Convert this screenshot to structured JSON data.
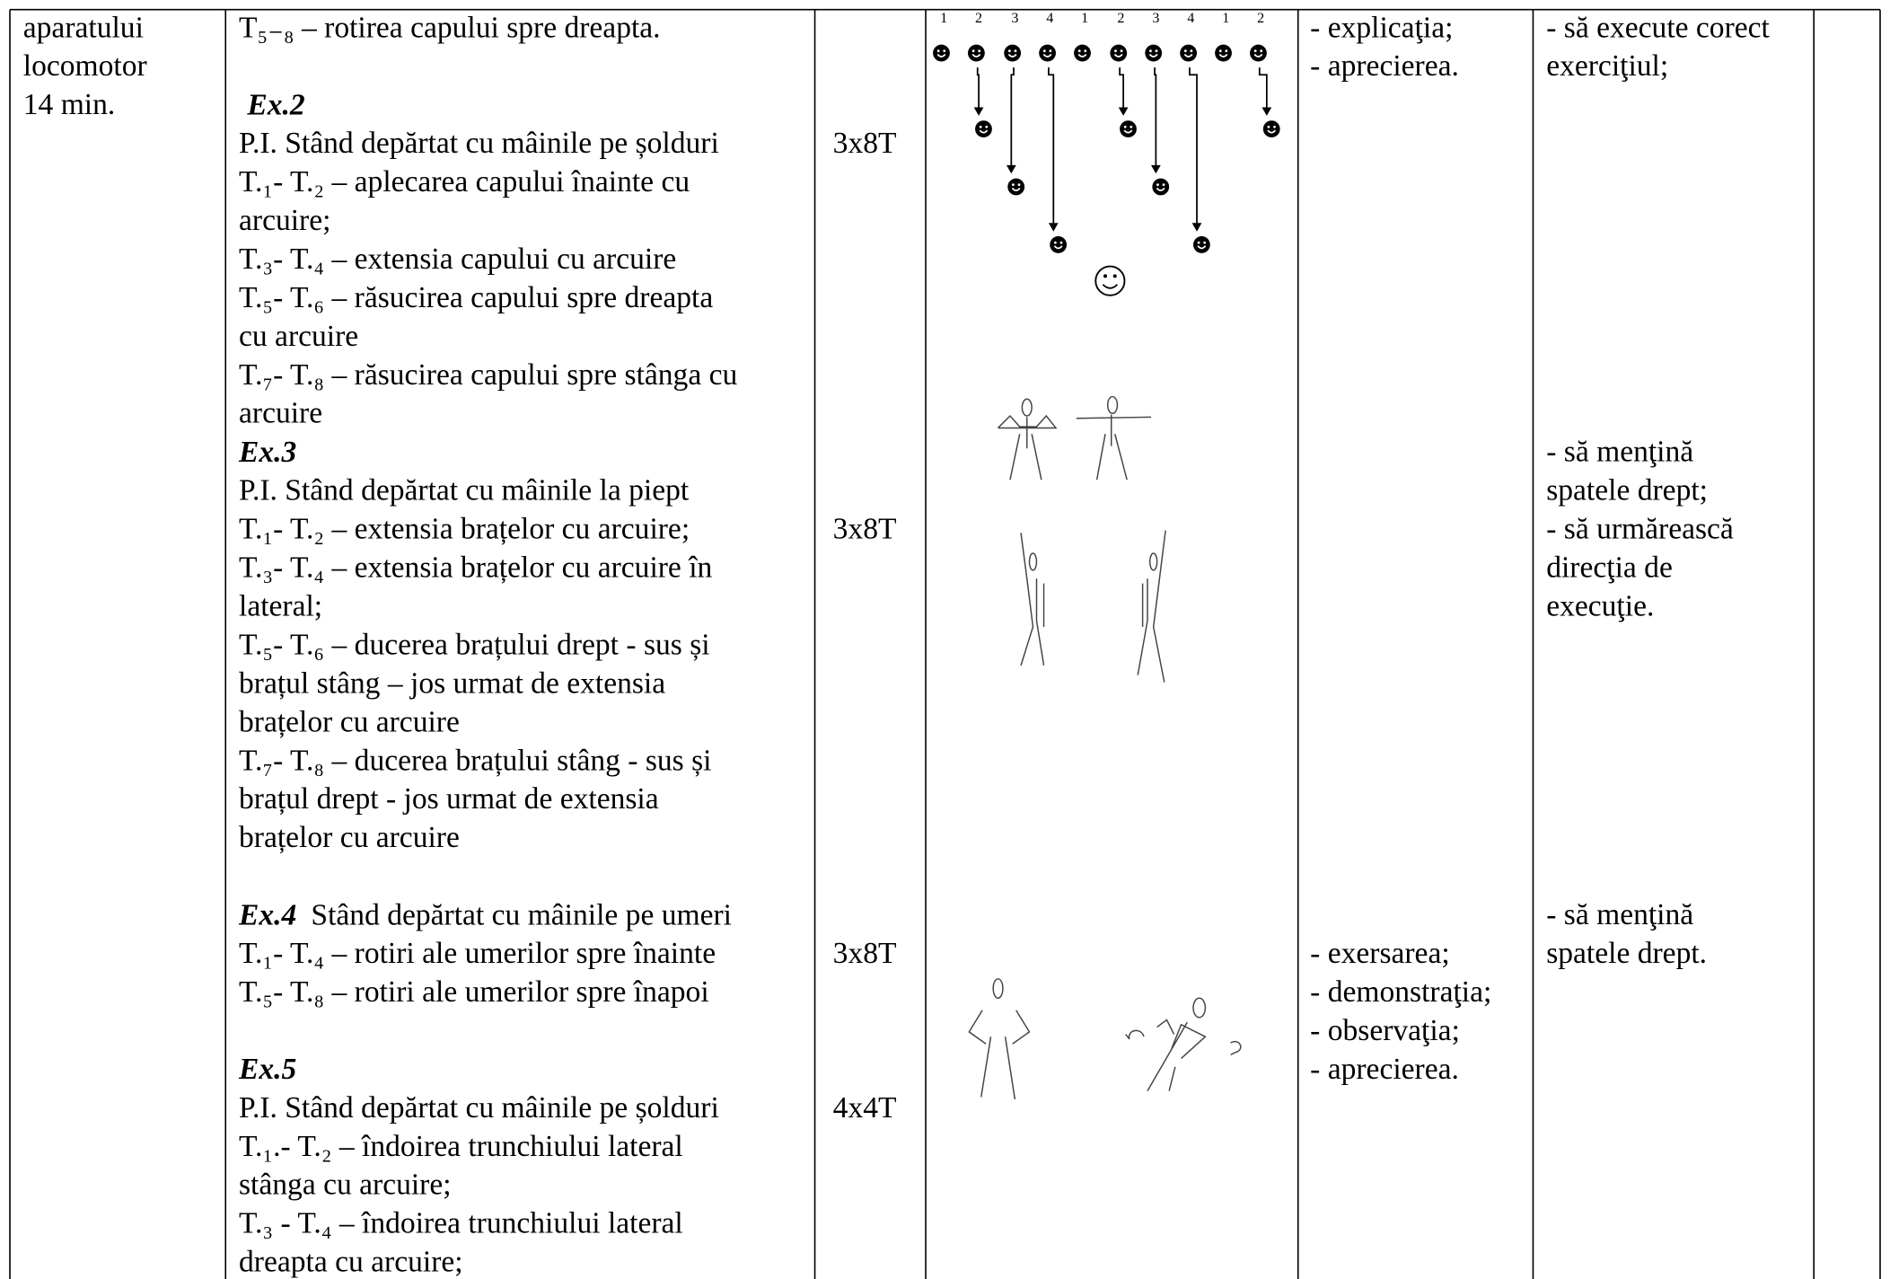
{
  "table": {
    "col1": [
      "aparatului",
      "locomotor",
      "14 min."
    ],
    "col2": [
      "T₅₋₈  – rotirea capului spre dreapta.",
      {
        "em": "Ex.2"
      },
      "P.I. Stând depărtat cu mâinile pe șolduri",
      "T.₁- T.₂ – aplecarea capului înainte cu",
      "arcuire;",
      "T.₃- T.₄ – extensia capului cu arcuire",
      "T.₅- T.₆ – răsucirea capului spre dreapta",
      "cu arcuire",
      "T.₇- T.₈ – răsucirea capului spre stânga cu",
      "arcuire",
      {
        "em": "Ex.3"
      },
      "P.I.  Stând depărtat cu mâinile la piept",
      "T.₁- T.₂ – extensia brațelor cu arcuire;",
      "T.₃- T.₄ – extensia brațelor cu arcuire în",
      "lateral;",
      "T.₅- T.₆ – ducerea brațului drept - sus și",
      "brațul stâng – jos urmat de extensia",
      "brațelor cu arcuire",
      "T.₇- T.₈ – ducerea brațului stâng - sus și",
      "brațul drept - jos urmat de extensia",
      "brațelor cu arcuire",
      {
        "em": "Ex.4",
        "text": "Stând depărtat cu mâinile pe umeri"
      },
      "T.₁- T.₄ – rotiri ale umerilor spre înainte",
      "T.₅- T.₈ – rotiri ale umerilor spre înapoi",
      {
        "em": "Ex.5"
      },
      "P.I. Stând depărtat cu mâinile pe șolduri",
      "T.₁.- T.₂   – îndoirea trunchiului lateral",
      "stânga cu arcuire;",
      "T.₃ - T.₄   –  îndoirea trunchiului lateral",
      "dreapta cu arcuire;"
    ],
    "col3": [
      "3x8T",
      "3x8T",
      "3x8T",
      "4x4T"
    ],
    "diagram_counts": [
      "1",
      "2",
      "3",
      "4",
      "1",
      "2",
      "3",
      "4",
      "1",
      "2"
    ],
    "col5": [
      "- explicaţia;",
      "- aprecierea.",
      "- exersarea;",
      "- demonstraţia;",
      "- observaţia;",
      "- aprecierea."
    ],
    "col6": [
      "- să execute corect",
      "exerciţiul;",
      "- să menţină",
      "spatele drept;",
      "- să urmărească",
      "direcţia de",
      "execuţie.",
      "- să menţină",
      "spatele drept."
    ]
  }
}
